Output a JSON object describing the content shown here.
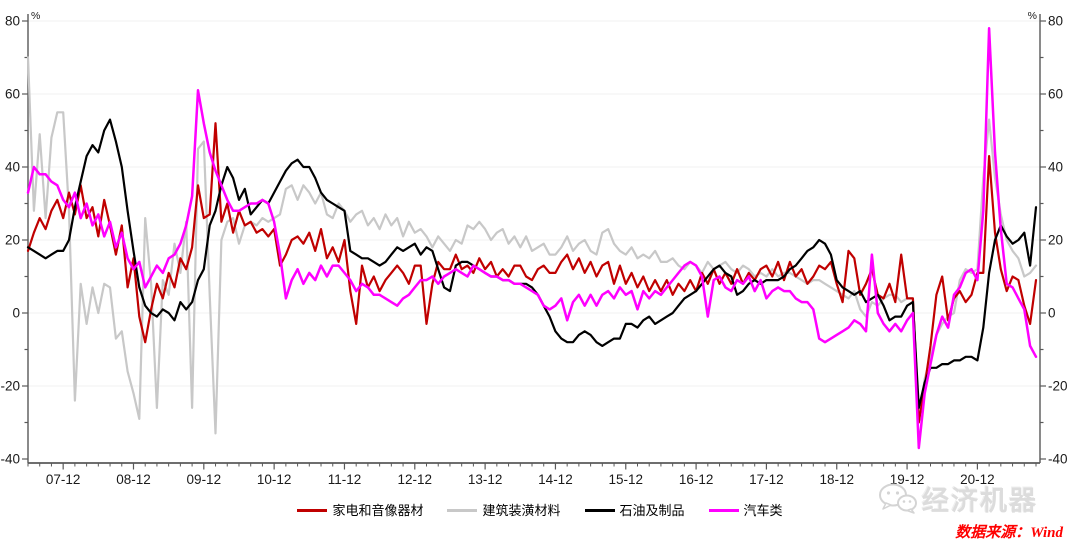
{
  "chart_data": {
    "type": "line",
    "title": "",
    "ylabel_left": "%",
    "ylabel_right": "%",
    "ylim": [
      -40,
      80
    ],
    "y_ticks": [
      -40,
      -20,
      0,
      20,
      40,
      60,
      80
    ],
    "grid": "horizontal-light",
    "legend_position": "bottom-center",
    "x_start_month": "2007-06",
    "x_tick_labels": [
      "07-12",
      "08-12",
      "09-12",
      "10-12",
      "11-12",
      "12-12",
      "13-12",
      "14-12",
      "15-12",
      "16-12",
      "17-12",
      "18-12",
      "19-12",
      "20-12"
    ],
    "axis_color": "#595959",
    "grid_color": "#f1f1f1",
    "series": [
      {
        "name": "家电和音像器材",
        "color": "#C00000",
        "values": [
          17,
          22,
          26,
          23,
          28,
          31,
          26,
          33,
          27,
          35,
          26,
          29,
          21,
          31,
          24,
          16,
          24,
          7,
          15,
          -1,
          -8,
          1,
          8,
          4,
          11,
          7,
          15,
          12,
          18,
          35,
          26,
          27,
          52,
          25,
          30,
          22,
          28,
          24,
          25,
          22,
          23,
          21,
          23,
          13,
          16,
          20,
          21,
          19,
          22,
          17,
          23,
          15,
          18,
          14,
          20,
          6,
          -3,
          13,
          7,
          10,
          6,
          9,
          11,
          13,
          11,
          8,
          13,
          13,
          -3,
          8,
          14,
          12,
          12,
          16,
          12,
          13,
          11,
          15,
          12,
          14,
          10,
          12,
          10,
          13,
          13,
          10,
          9,
          12,
          13,
          11,
          11,
          14,
          16,
          12,
          15,
          11,
          14,
          10,
          13,
          14,
          8,
          13,
          8,
          11,
          7,
          10,
          6,
          9,
          6,
          9,
          5,
          8,
          6,
          9,
          6,
          11,
          8,
          12,
          8,
          11,
          8,
          12,
          8,
          11,
          9,
          12,
          13,
          10,
          14,
          9,
          14,
          10,
          12,
          8,
          10,
          13,
          12,
          14,
          8,
          3,
          17,
          15,
          5,
          8,
          12,
          5,
          4,
          8,
          3,
          16,
          4,
          4,
          -30,
          -20,
          -9,
          5,
          10,
          -2,
          4,
          6,
          3,
          5,
          11,
          11,
          43,
          22,
          12,
          6,
          10,
          9,
          2,
          -3,
          9
        ]
      },
      {
        "name": "建筑装潢材料",
        "color": "#C8C8C8",
        "values": [
          70,
          28,
          49,
          26,
          48,
          55,
          55,
          28,
          -24,
          8,
          -3,
          7,
          0,
          8,
          7,
          -7,
          -5,
          -16,
          -22,
          -29,
          26,
          8,
          -26,
          9,
          5,
          19,
          11,
          25,
          -26,
          45,
          47,
          5,
          -33,
          20,
          25,
          26,
          19,
          24,
          25,
          24,
          26,
          25,
          26,
          27,
          34,
          35,
          31,
          35,
          33,
          30,
          33,
          27,
          26,
          30,
          28,
          25,
          27,
          28,
          24,
          26,
          23,
          27,
          24,
          26,
          21,
          25,
          22,
          23,
          21,
          18,
          21,
          19,
          17,
          20,
          19,
          24,
          23,
          25,
          23,
          20,
          22,
          23,
          19,
          21,
          18,
          21,
          17,
          18,
          19,
          16,
          16,
          18,
          21,
          17,
          19,
          20,
          17,
          16,
          22,
          23,
          19,
          17,
          16,
          18,
          15,
          16,
          15,
          17,
          14,
          14,
          15,
          13,
          12,
          14,
          13,
          11,
          14,
          12,
          13,
          14,
          12,
          11,
          13,
          12,
          10,
          11,
          10,
          12,
          10,
          11,
          11,
          10,
          9,
          8,
          9,
          9,
          8,
          7,
          6,
          5,
          4,
          6,
          1,
          -1,
          3,
          2,
          4,
          5,
          5,
          3,
          4,
          4,
          -30,
          -18,
          -12,
          -6,
          -3,
          -1,
          0,
          9,
          12,
          11,
          12,
          37,
          53,
          37,
          27,
          20,
          17,
          15,
          10,
          11,
          13
        ]
      },
      {
        "name": "石油及制品",
        "color": "#000000",
        "values": [
          18,
          17,
          16,
          15,
          16,
          17,
          17,
          20,
          29,
          36,
          43,
          46,
          44,
          50,
          53,
          47,
          40,
          28,
          17,
          7,
          2,
          0,
          -1,
          1,
          0,
          -2,
          3,
          1,
          3,
          9,
          12,
          24,
          28,
          35,
          40,
          37,
          31,
          34,
          27,
          29,
          31,
          30,
          33,
          36,
          39,
          41,
          42,
          40,
          40,
          37,
          33,
          31,
          30,
          29,
          28,
          17,
          16,
          15,
          15,
          14,
          13,
          14,
          16,
          18,
          17,
          18,
          19,
          16,
          18,
          17,
          12,
          7,
          6,
          13,
          14,
          14,
          13,
          12,
          11,
          10,
          10,
          9,
          9,
          8,
          8,
          8,
          7,
          5,
          2,
          -1,
          -5,
          -7,
          -8,
          -8,
          -6,
          -5,
          -6,
          -8,
          -9,
          -8,
          -7,
          -7,
          -3,
          -3,
          -4,
          -2,
          -1,
          -3,
          -2,
          -1,
          0,
          2,
          4,
          5,
          6,
          8,
          10,
          12,
          13,
          11,
          10,
          5,
          6,
          8,
          9,
          8,
          9,
          9,
          9,
          10,
          12,
          13,
          15,
          17,
          18,
          20,
          19,
          16,
          9,
          7,
          6,
          5,
          6,
          3,
          4,
          5,
          2,
          -2,
          -1,
          -1,
          2,
          3,
          -26,
          -19,
          -15,
          -15,
          -14,
          -14,
          -13,
          -13,
          -12,
          -12,
          -13,
          -4,
          11,
          20,
          24,
          21,
          19,
          20,
          22,
          13,
          29
        ]
      },
      {
        "name": "汽车类",
        "color": "#FF00FF",
        "values": [
          33,
          40,
          38,
          38,
          36,
          35,
          31,
          29,
          33,
          26,
          30,
          24,
          27,
          21,
          25,
          18,
          22,
          15,
          12,
          14,
          7,
          10,
          13,
          11,
          15,
          16,
          19,
          24,
          32,
          61,
          52,
          44,
          39,
          35,
          31,
          28,
          28,
          29,
          30,
          30,
          31,
          30,
          25,
          16,
          4,
          9,
          12,
          8,
          11,
          9,
          13,
          10,
          13,
          13,
          11,
          9,
          6,
          8,
          7,
          5,
          5,
          4,
          3,
          2,
          4,
          5,
          7,
          9,
          9,
          10,
          8,
          10,
          11,
          12,
          11,
          10,
          13,
          12,
          11,
          10,
          10,
          9,
          9,
          8,
          8,
          7,
          6,
          5,
          2,
          1,
          2,
          4,
          -2,
          3,
          5,
          2,
          5,
          2,
          5,
          6,
          4,
          7,
          5,
          6,
          1,
          6,
          4,
          6,
          5,
          7,
          9,
          11,
          13,
          14,
          13,
          10,
          -1,
          9,
          10,
          7,
          6,
          9,
          8,
          10,
          6,
          9,
          4,
          6,
          7,
          6,
          6,
          4,
          3,
          3,
          1,
          -7,
          -8,
          -7,
          -6,
          -5,
          -4,
          -2,
          -3,
          -5,
          16,
          0,
          -3,
          -5,
          -3,
          -5,
          -2,
          0,
          -37,
          -22,
          -14,
          -6,
          -1,
          -4,
          5,
          7,
          11,
          12,
          9,
          28,
          78,
          44,
          23,
          8,
          7,
          4,
          1,
          -9,
          -12
        ]
      }
    ]
  },
  "watermark": {
    "brand": "经济机器",
    "icon": "wechat-icon"
  },
  "source_note": "数据来源：Wind"
}
